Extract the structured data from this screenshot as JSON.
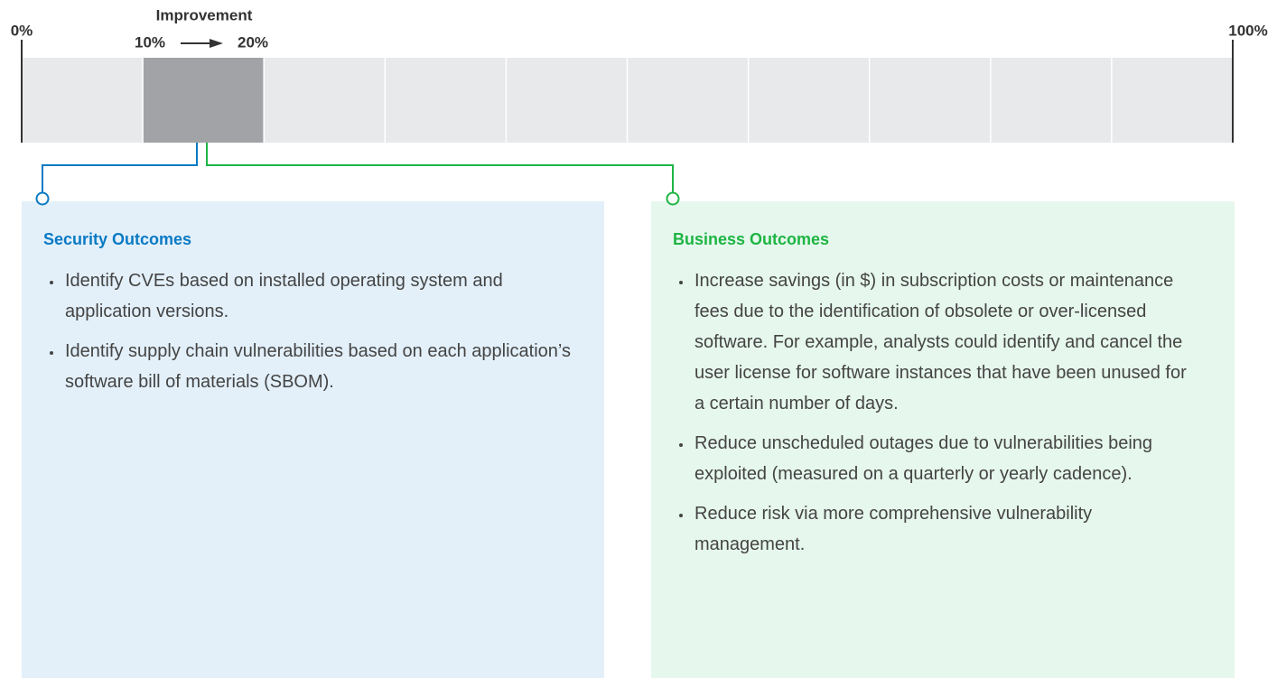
{
  "scale": {
    "min": {
      "value": 0,
      "label": "0%"
    },
    "max": {
      "value": 100,
      "label": "100%"
    },
    "grid_step": 10
  },
  "improvement": {
    "label": "Improvement",
    "from": {
      "value": 10,
      "label": "10%"
    },
    "to": {
      "value": 20,
      "label": "20%"
    }
  },
  "panels": [
    {
      "title": "Security Outcomes",
      "bullets": [
        "Identify CVEs based on installed operating system and application versions.",
        "Identify supply chain vulnerabilities based on each application’s software bill of materials (SBOM)."
      ]
    },
    {
      "title": "Business Outcomes",
      "bullets": [
        "Increase savings (in $) in subscription costs or maintenance fees due to the identification of obsolete or over-licensed software. For example, analysts could identify and cancel the user license for software instances that have been unused for a certain number of days.",
        "Reduce unscheduled outages due to vulnerabilities being exploited (measured on a quarterly or yearly cadence).",
        "Reduce risk via more comprehensive vulnerability management."
      ]
    }
  ]
}
